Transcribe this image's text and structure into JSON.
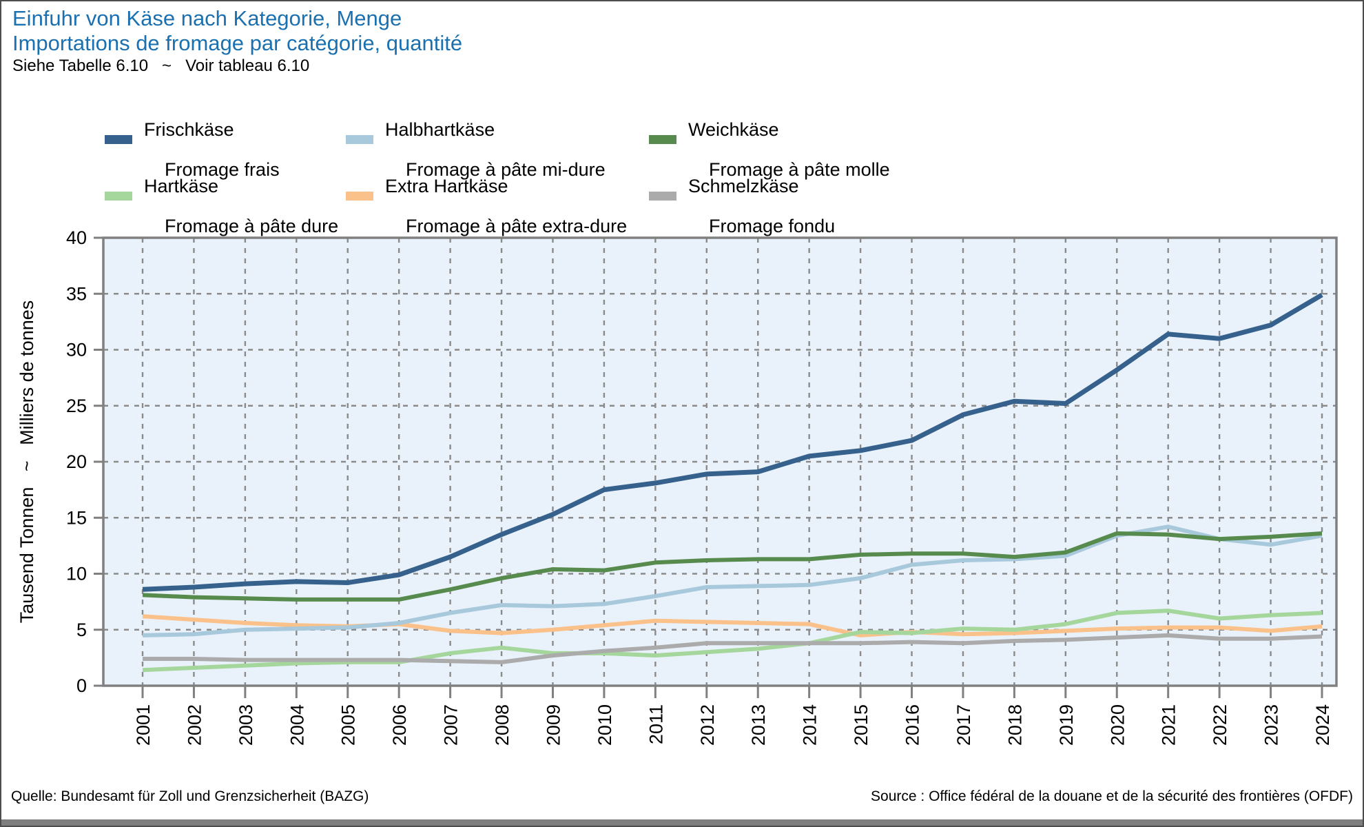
{
  "header": {
    "subtitle": "Siehe Tabelle 6.10   ~   Voir tableau 6.10"
  },
  "footer": {
    "source_de": "Quelle: Bundesamt für Zoll und Grenzsicherheit (BAZG)",
    "source_fr": "Source : Office fédéral de la douane et de la sécurité des frontières (OFDF)"
  },
  "colors": {
    "title_blue": "#1b70b0",
    "plot_background": "#e9f2fb",
    "gridline": "#8a8a8a",
    "spine": "#808080",
    "bottom_bar": "#7e7e7e"
  },
  "chart_data": {
    "type": "line",
    "title_de": "Einfuhr von Käse nach Kategorie, Menge",
    "title_fr": "Importations de fromage par catégorie, quantité",
    "ylabel": "Tausend Tonnen   ~   Milliers de tonnes",
    "xlabel": "",
    "ylim": [
      0,
      40
    ],
    "ytick_step": 5,
    "grid": true,
    "legend_position": "top",
    "x": [
      2001,
      2002,
      2003,
      2004,
      2005,
      2006,
      2007,
      2008,
      2009,
      2010,
      2011,
      2012,
      2013,
      2014,
      2015,
      2016,
      2017,
      2018,
      2019,
      2020,
      2021,
      2022,
      2023,
      2024
    ],
    "series": [
      {
        "id": "frischkaese",
        "label_de": "Frischkäse",
        "label_fr": "Fromage frais",
        "color": "#35618c",
        "width": 7,
        "values": [
          8.6,
          8.8,
          9.1,
          9.3,
          9.2,
          9.9,
          11.5,
          13.5,
          15.3,
          17.5,
          18.1,
          18.9,
          19.1,
          20.5,
          21.0,
          21.9,
          24.2,
          25.4,
          25.2,
          28.2,
          31.4,
          31.0,
          32.2,
          34.9
        ]
      },
      {
        "id": "halbhartkaese",
        "label_de": "Halbhartkäse",
        "label_fr": "Fromage à pâte mi-dure",
        "color": "#a7c9db",
        "width": 6,
        "values": [
          4.5,
          4.6,
          5.0,
          5.1,
          5.2,
          5.6,
          6.5,
          7.2,
          7.1,
          7.3,
          8.0,
          8.8,
          8.9,
          9.0,
          9.6,
          10.8,
          11.2,
          11.3,
          11.6,
          13.4,
          14.2,
          13.1,
          12.6,
          13.4
        ]
      },
      {
        "id": "weichkaese",
        "label_de": "Weichkäse",
        "label_fr": "Fromage à pâte molle",
        "color": "#578b4e",
        "width": 6,
        "values": [
          8.1,
          7.9,
          7.8,
          7.7,
          7.7,
          7.7,
          8.6,
          9.6,
          10.4,
          10.3,
          11.0,
          11.2,
          11.3,
          11.3,
          11.7,
          11.8,
          11.8,
          11.5,
          11.9,
          13.6,
          13.5,
          13.1,
          13.3,
          13.6
        ]
      },
      {
        "id": "hartkaese",
        "label_de": "Hartkäse",
        "label_fr": "Fromage à pâte dure",
        "color": "#a5d79d",
        "width": 6,
        "values": [
          1.4,
          1.6,
          1.8,
          2.0,
          2.1,
          2.1,
          2.9,
          3.4,
          2.9,
          2.9,
          2.7,
          3.0,
          3.3,
          3.8,
          4.8,
          4.7,
          5.1,
          5.0,
          5.5,
          6.5,
          6.7,
          6.0,
          6.3,
          6.5
        ]
      },
      {
        "id": "extra-hartkaese",
        "label_de": "Extra Hartkäse",
        "label_fr": "Fromage à pâte extra-dure",
        "color": "#fac18a",
        "width": 6,
        "values": [
          6.2,
          5.9,
          5.6,
          5.4,
          5.3,
          5.5,
          4.9,
          4.7,
          5.0,
          5.4,
          5.8,
          5.7,
          5.6,
          5.5,
          4.5,
          4.8,
          4.6,
          4.7,
          4.9,
          5.1,
          5.2,
          5.2,
          4.9,
          5.3
        ]
      },
      {
        "id": "schmelzkaese",
        "label_de": "Schmelzkäse",
        "label_fr": "Fromage fondu",
        "color": "#ababab",
        "width": 6,
        "values": [
          2.4,
          2.4,
          2.3,
          2.3,
          2.3,
          2.3,
          2.2,
          2.1,
          2.7,
          3.1,
          3.4,
          3.8,
          3.8,
          3.8,
          3.8,
          3.9,
          3.8,
          4.0,
          4.1,
          4.3,
          4.5,
          4.2,
          4.2,
          4.4
        ]
      }
    ]
  }
}
